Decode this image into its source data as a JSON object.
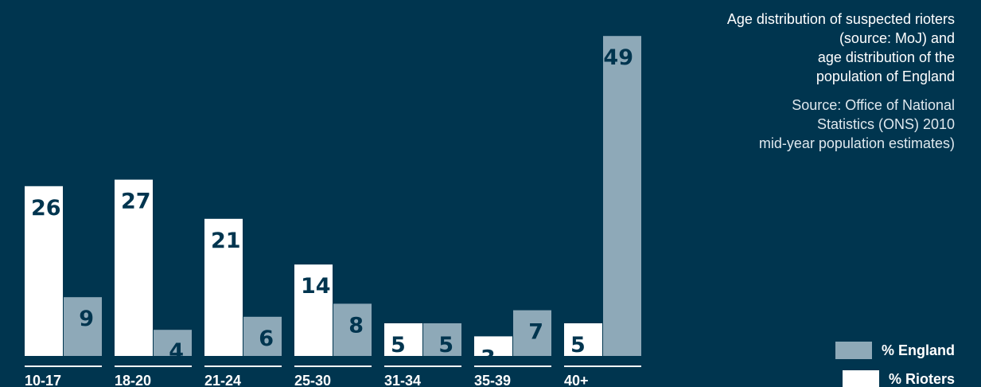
{
  "title_lines": [
    "Age distribution of suspected rioters",
    "(source: MoJ) and",
    "age distribution of the",
    "population of England"
  ],
  "subtitle_lines": [
    "Source: Office of National",
    "Statistics (ONS) 2010",
    "mid-year population estimates)"
  ],
  "legend": [
    {
      "label": "% England",
      "color": "#8ea9b8"
    },
    {
      "label": "% Rioters",
      "color": "#ffffff"
    }
  ],
  "colors": {
    "background": "#00354f",
    "rioters": "#ffffff",
    "england": "#8ea9b8",
    "axis": "#ffffff",
    "label_dark": "#00354f",
    "label_light": "#ffffff"
  },
  "chart_data": {
    "type": "bar",
    "categories": [
      "10-17",
      "18-20",
      "21-24",
      "25-30",
      "31-34",
      "35-39",
      "40+"
    ],
    "series": [
      {
        "name": "% Rioters",
        "values": [
          26,
          27,
          21,
          14,
          5,
          3,
          5
        ],
        "color": "#ffffff"
      },
      {
        "name": "% England",
        "values": [
          9,
          4,
          6,
          8,
          5,
          7,
          49
        ],
        "color": "#8ea9b8"
      }
    ],
    "ylim": [
      0,
      50
    ],
    "grid": false,
    "legend_position": "bottom-right",
    "title": "Age distribution of suspected rioters (source: MoJ) and age distribution of the population of England",
    "subtitle": "Source: Office of National Statistics (ONS) 2010 mid-year population estimates)"
  }
}
